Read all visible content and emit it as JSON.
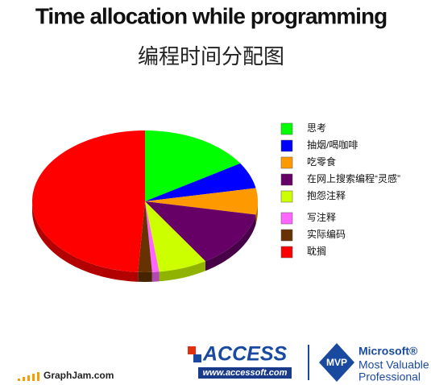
{
  "chart_data": {
    "type": "pie",
    "title": "Time allocation while programming",
    "subtitle": "编程时间分配图",
    "categories": [
      "思考",
      "抽烟/喝咖啡",
      "吃零食",
      "在网上搜索编程“灵感”",
      "抱怨注释",
      "写注释",
      "实际编码",
      "耽搁"
    ],
    "values": [
      16,
      6,
      6,
      13,
      7,
      1,
      2,
      49
    ],
    "colors": [
      "#00ff00",
      "#0000ff",
      "#ff9900",
      "#660066",
      "#ccff00",
      "#ff66ff",
      "#663300",
      "#ff0000"
    ],
    "legend": "right"
  },
  "branding": {
    "access": "ACCESS",
    "access_url": "www.accessoft.com",
    "mvp_badge": "MVP",
    "mvp_company": "Microsoft®",
    "mvp_line1": "Most Valuable",
    "mvp_line2": "Professional",
    "source": "GraphJam.com"
  }
}
